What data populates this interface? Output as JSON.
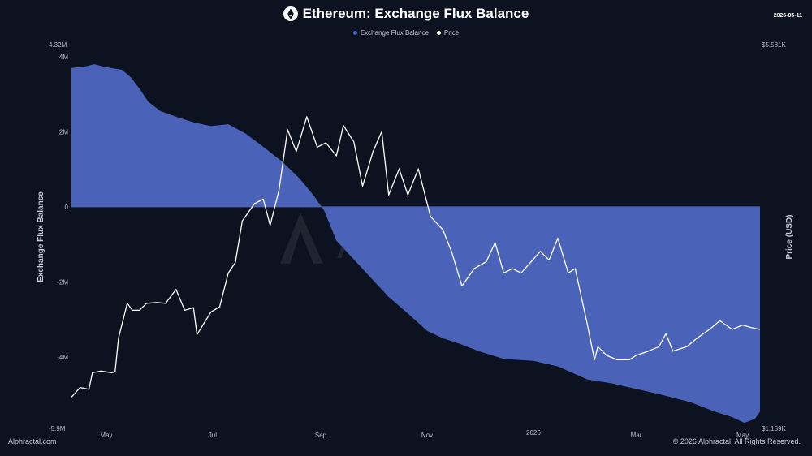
{
  "header": {
    "title": "Ethereum: Exchange Flux Balance",
    "date": "2026-05-11"
  },
  "legend": [
    {
      "label": "Exchange Flux Balance",
      "color": "#4a62b8"
    },
    {
      "label": "Price",
      "color": "#ffffff"
    }
  ],
  "footer": {
    "left": "Alphractal.com",
    "right": "© 2026 Alphractal. All Rights Reserved."
  },
  "watermark": "Alphractal",
  "chart_data": {
    "type": "area",
    "left_axis": {
      "title": "Exchange Flux Balance",
      "ticks": [
        "4M",
        "2M",
        "0",
        "-2M",
        "-4M"
      ],
      "tick_values": [
        4000000,
        2000000,
        0,
        -2000000,
        -4000000
      ],
      "top_label": "4.32M",
      "bottom_label": "-5.9M",
      "range": [
        -5900000,
        4320000
      ]
    },
    "right_axis": {
      "title": "Price (USD)",
      "top_label": "$5.581K",
      "bottom_label": "$1.159K",
      "range": [
        1159,
        5581
      ]
    },
    "x_ticks": [
      "May",
      "Jul",
      "Sep",
      "Nov",
      "2026",
      "Mar",
      "May"
    ],
    "x_tick_dates": [
      "2025-05-01",
      "2025-07-01",
      "2025-09-01",
      "2025-11-01",
      "2026-01-01",
      "2026-03-01",
      "2026-05-01"
    ],
    "x_range": [
      "2025-04-11",
      "2026-05-11"
    ],
    "series": [
      {
        "name": "Exchange Flux Balance",
        "color": "#4a62b8",
        "points": [
          [
            "2025-04-11",
            3700000
          ],
          [
            "2025-04-20",
            3750000
          ],
          [
            "2025-04-24",
            3800000
          ],
          [
            "2025-05-01",
            3720000
          ],
          [
            "2025-05-10",
            3650000
          ],
          [
            "2025-05-15",
            3450000
          ],
          [
            "2025-05-20",
            3150000
          ],
          [
            "2025-05-25",
            2800000
          ],
          [
            "2025-06-01",
            2550000
          ],
          [
            "2025-06-10",
            2400000
          ],
          [
            "2025-06-20",
            2250000
          ],
          [
            "2025-06-30",
            2150000
          ],
          [
            "2025-07-10",
            2200000
          ],
          [
            "2025-07-20",
            1950000
          ],
          [
            "2025-07-30",
            1600000
          ],
          [
            "2025-08-10",
            1200000
          ],
          [
            "2025-08-20",
            750000
          ],
          [
            "2025-08-28",
            300000
          ],
          [
            "2025-09-03",
            -100000
          ],
          [
            "2025-09-10",
            -900000
          ],
          [
            "2025-09-20",
            -1400000
          ],
          [
            "2025-10-01",
            -1950000
          ],
          [
            "2025-10-10",
            -2400000
          ],
          [
            "2025-10-20",
            -2800000
          ],
          [
            "2025-11-01",
            -3300000
          ],
          [
            "2025-11-10",
            -3500000
          ],
          [
            "2025-11-20",
            -3650000
          ],
          [
            "2025-12-01",
            -3850000
          ],
          [
            "2025-12-15",
            -4050000
          ],
          [
            "2026-01-01",
            -4100000
          ],
          [
            "2026-01-15",
            -4250000
          ],
          [
            "2026-02-01",
            -4600000
          ],
          [
            "2026-02-15",
            -4700000
          ],
          [
            "2026-03-01",
            -4850000
          ],
          [
            "2026-03-15",
            -5000000
          ],
          [
            "2026-04-01",
            -5200000
          ],
          [
            "2026-04-15",
            -5450000
          ],
          [
            "2026-04-25",
            -5600000
          ],
          [
            "2026-05-02",
            -5750000
          ],
          [
            "2026-05-08",
            -5650000
          ],
          [
            "2026-05-11",
            -5450000
          ]
        ]
      },
      {
        "name": "Price",
        "color": "#ffffff",
        "points": [
          [
            "2025-04-11",
            1520
          ],
          [
            "2025-04-16",
            1630
          ],
          [
            "2025-04-21",
            1610
          ],
          [
            "2025-04-23",
            1800
          ],
          [
            "2025-04-28",
            1820
          ],
          [
            "2025-05-04",
            1800
          ],
          [
            "2025-05-06",
            1810
          ],
          [
            "2025-05-08",
            2200
          ],
          [
            "2025-05-13",
            2600
          ],
          [
            "2025-05-16",
            2520
          ],
          [
            "2025-05-20",
            2520
          ],
          [
            "2025-05-24",
            2600
          ],
          [
            "2025-05-30",
            2610
          ],
          [
            "2025-06-04",
            2600
          ],
          [
            "2025-06-10",
            2760
          ],
          [
            "2025-06-15",
            2520
          ],
          [
            "2025-06-20",
            2550
          ],
          [
            "2025-06-22",
            2240
          ],
          [
            "2025-06-30",
            2500
          ],
          [
            "2025-07-05",
            2560
          ],
          [
            "2025-07-10",
            2950
          ],
          [
            "2025-07-14",
            3070
          ],
          [
            "2025-07-18",
            3550
          ],
          [
            "2025-07-25",
            3750
          ],
          [
            "2025-07-30",
            3800
          ],
          [
            "2025-08-03",
            3500
          ],
          [
            "2025-08-08",
            3900
          ],
          [
            "2025-08-13",
            4600
          ],
          [
            "2025-08-18",
            4350
          ],
          [
            "2025-08-24",
            4750
          ],
          [
            "2025-08-30",
            4400
          ],
          [
            "2025-09-04",
            4450
          ],
          [
            "2025-09-10",
            4300
          ],
          [
            "2025-09-14",
            4650
          ],
          [
            "2025-09-20",
            4460
          ],
          [
            "2025-09-25",
            3950
          ],
          [
            "2025-10-01",
            4350
          ],
          [
            "2025-10-06",
            4580
          ],
          [
            "2025-10-10",
            3850
          ],
          [
            "2025-10-16",
            4150
          ],
          [
            "2025-10-21",
            3850
          ],
          [
            "2025-10-27",
            4150
          ],
          [
            "2025-11-03",
            3600
          ],
          [
            "2025-11-10",
            3450
          ],
          [
            "2025-11-15",
            3200
          ],
          [
            "2025-11-21",
            2800
          ],
          [
            "2025-11-28",
            3000
          ],
          [
            "2025-12-05",
            3080
          ],
          [
            "2025-12-10",
            3300
          ],
          [
            "2025-12-15",
            2950
          ],
          [
            "2025-12-20",
            3000
          ],
          [
            "2025-12-25",
            2950
          ],
          [
            "2026-01-05",
            3200
          ],
          [
            "2026-01-10",
            3100
          ],
          [
            "2026-01-15",
            3350
          ],
          [
            "2026-01-21",
            2950
          ],
          [
            "2026-01-25",
            3000
          ],
          [
            "2026-02-01",
            2350
          ],
          [
            "2026-02-05",
            1950
          ],
          [
            "2026-02-07",
            2100
          ],
          [
            "2026-02-12",
            2000
          ],
          [
            "2026-02-18",
            1950
          ],
          [
            "2026-02-25",
            1950
          ],
          [
            "2026-03-01",
            2000
          ],
          [
            "2026-03-08",
            2050
          ],
          [
            "2026-03-14",
            2100
          ],
          [
            "2026-03-18",
            2250
          ],
          [
            "2026-03-22",
            2050
          ],
          [
            "2026-03-30",
            2100
          ],
          [
            "2026-04-05",
            2200
          ],
          [
            "2026-04-12",
            2300
          ],
          [
            "2026-04-18",
            2400
          ],
          [
            "2026-04-25",
            2300
          ],
          [
            "2026-05-01",
            2350
          ],
          [
            "2026-05-06",
            2320
          ],
          [
            "2026-05-11",
            2300
          ]
        ]
      }
    ]
  }
}
